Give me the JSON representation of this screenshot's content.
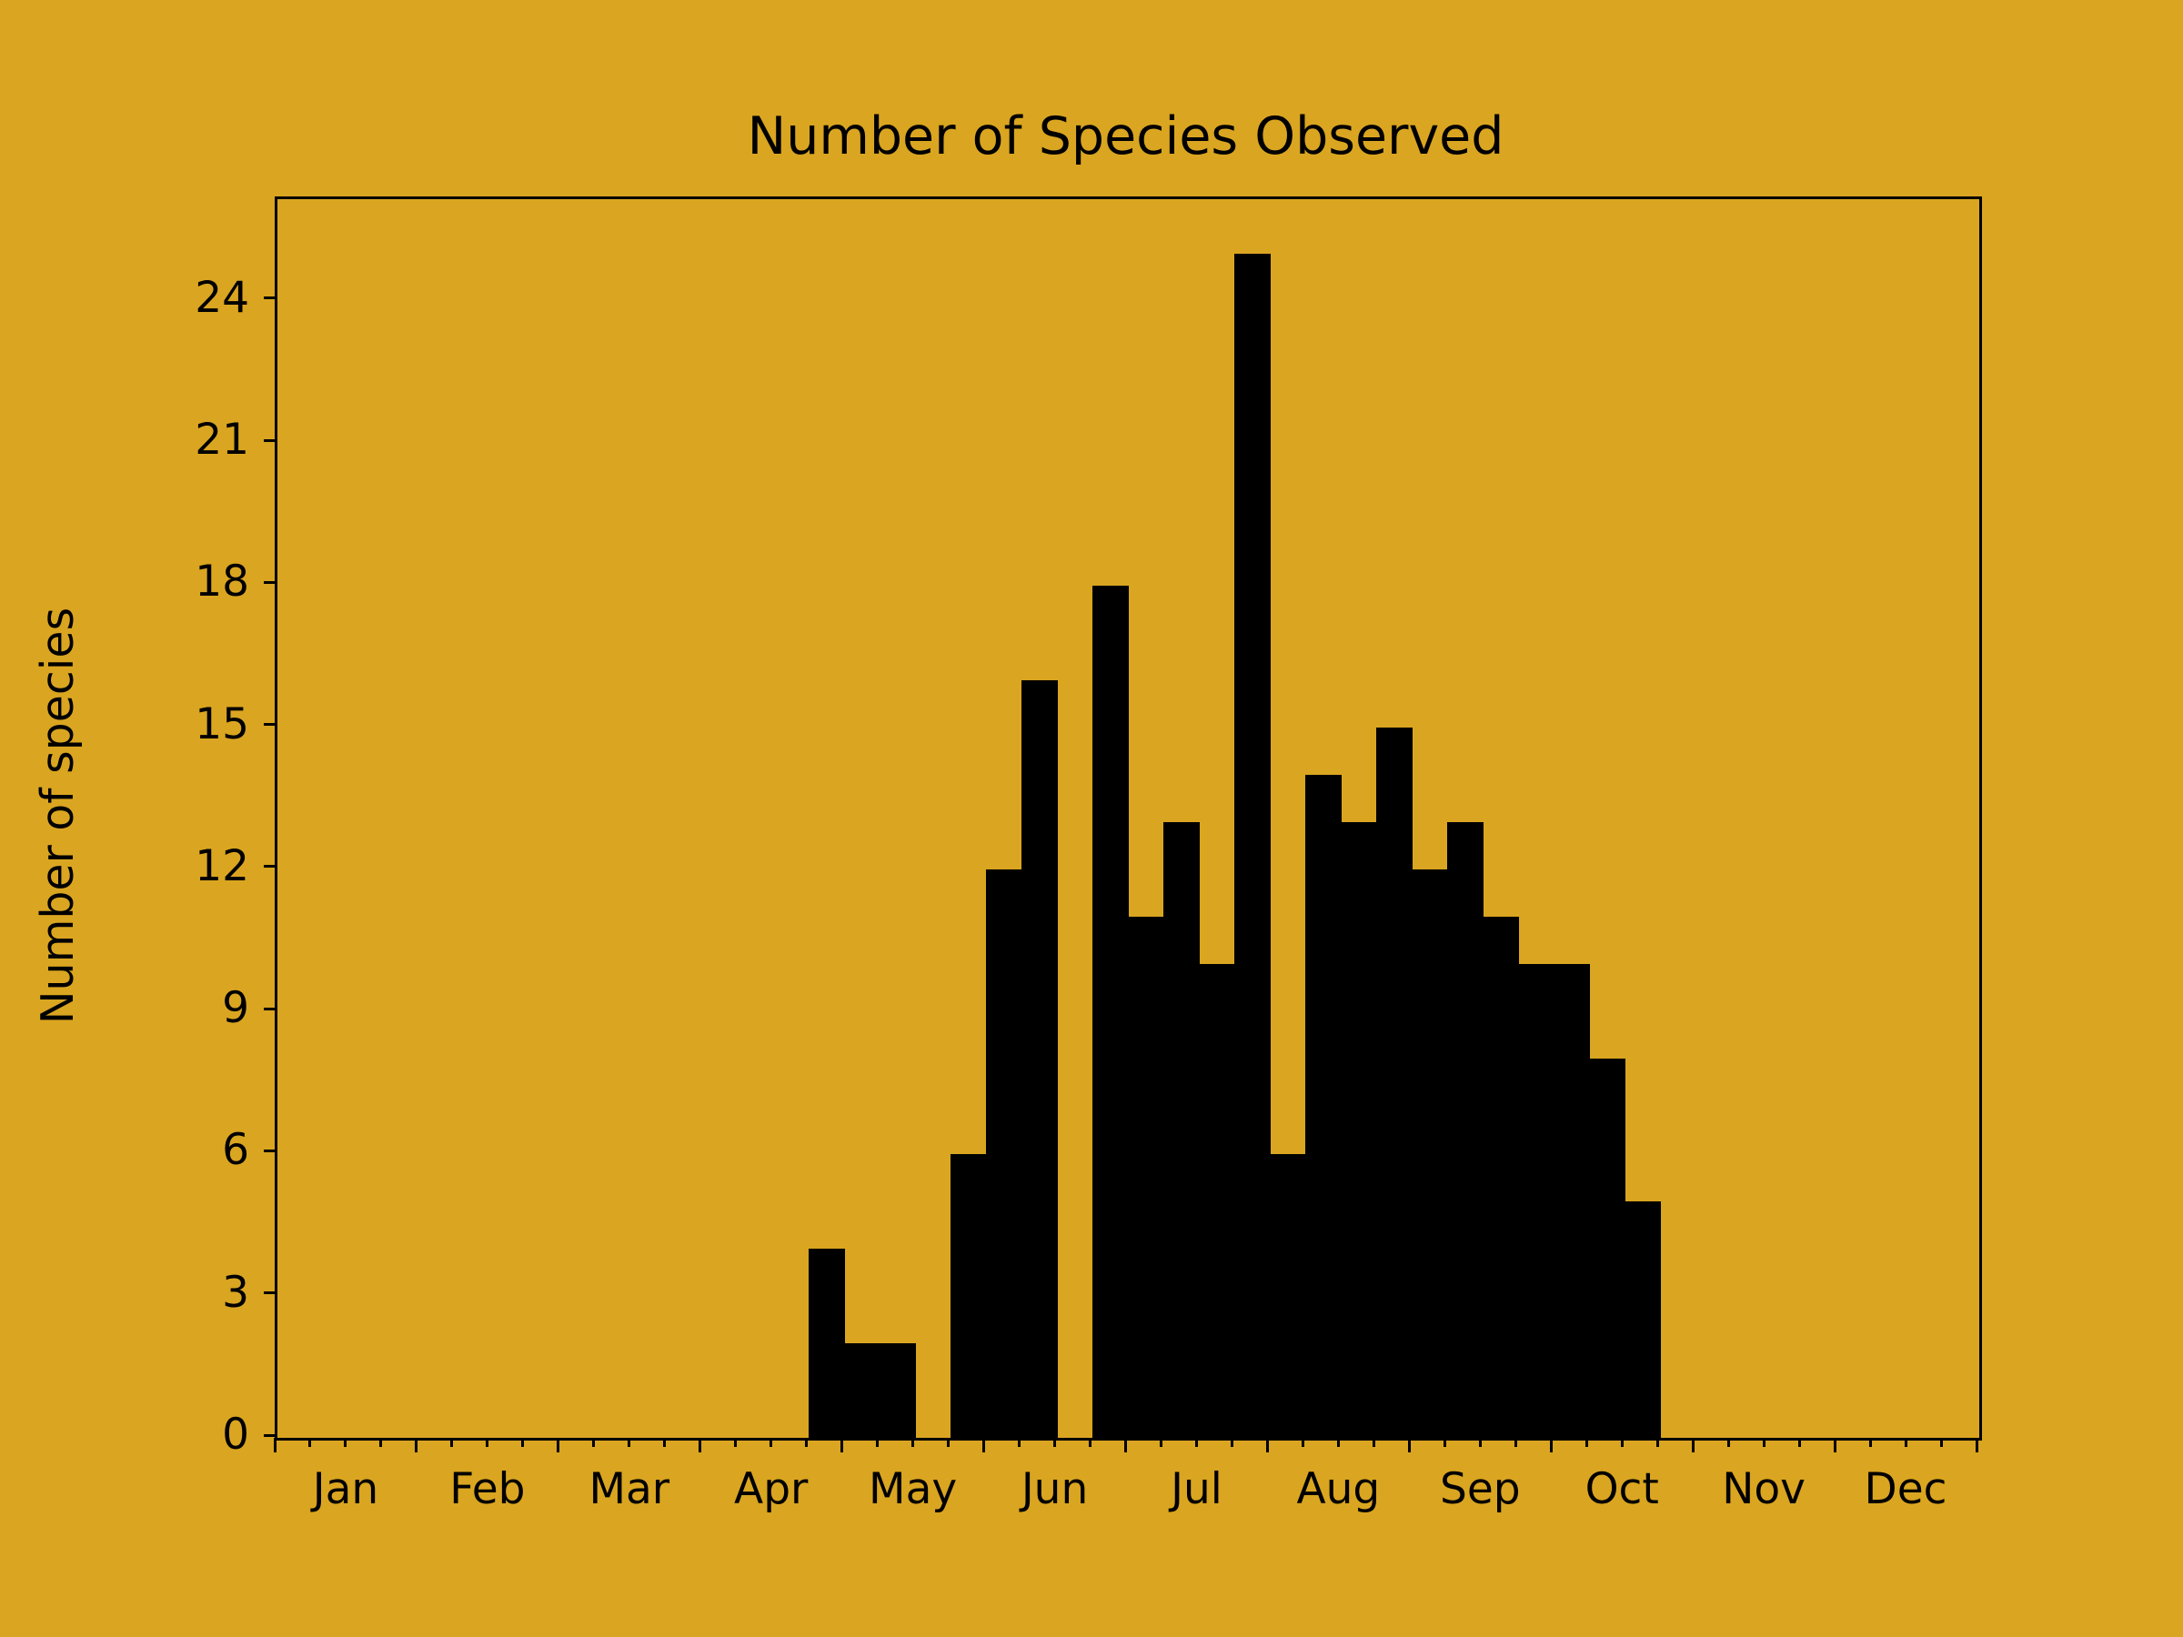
{
  "figure": {
    "title": "Number of Species Observed",
    "background_color": "#DAA520",
    "bar_color": "#000000",
    "text_color": "#000000"
  },
  "chart_data": {
    "type": "bar",
    "subtype": "histogram",
    "title": "Number of Species Observed",
    "xlabel": "",
    "ylabel": "Number of species",
    "grid": false,
    "legend": null,
    "x_axis": {
      "months": [
        "Jan",
        "Feb",
        "Mar",
        "Apr",
        "May",
        "Jun",
        "Jul",
        "Aug",
        "Sep",
        "Oct",
        "Nov",
        "Dec"
      ],
      "minor_divisions_per_month": 4,
      "labels_position": "month-center"
    },
    "y_axis": {
      "ticks": [
        0,
        3,
        6,
        9,
        12,
        15,
        18,
        21,
        24
      ],
      "max": 26.15
    },
    "bars": [
      {
        "period": "Apr W4",
        "value": 4
      },
      {
        "period": "May W1",
        "value": 2
      },
      {
        "period": "May W2",
        "value": 2
      },
      {
        "period": "May W3",
        "value": 0
      },
      {
        "period": "May W4",
        "value": 6
      },
      {
        "period": "Jun W1",
        "value": 12
      },
      {
        "period": "Jun W2",
        "value": 16
      },
      {
        "period": "Jun W3",
        "value": 0
      },
      {
        "period": "Jun W4",
        "value": 18
      },
      {
        "period": "Jul W1",
        "value": 11
      },
      {
        "period": "Jul W2",
        "value": 13
      },
      {
        "period": "Jul W3",
        "value": 10
      },
      {
        "period": "Jul W4",
        "value": 25
      },
      {
        "period": "Aug W1",
        "value": 6
      },
      {
        "period": "Aug W2",
        "value": 14
      },
      {
        "period": "Aug W3",
        "value": 13
      },
      {
        "period": "Aug W4",
        "value": 15
      },
      {
        "period": "Sep W1",
        "value": 12
      },
      {
        "period": "Sep W2",
        "value": 13
      },
      {
        "period": "Sep W3",
        "value": 11
      },
      {
        "period": "Sep W4",
        "value": 10
      },
      {
        "period": "Oct W1",
        "value": 10
      },
      {
        "period": "Oct W2",
        "value": 8
      },
      {
        "period": "Oct W3",
        "value": 5
      }
    ]
  }
}
